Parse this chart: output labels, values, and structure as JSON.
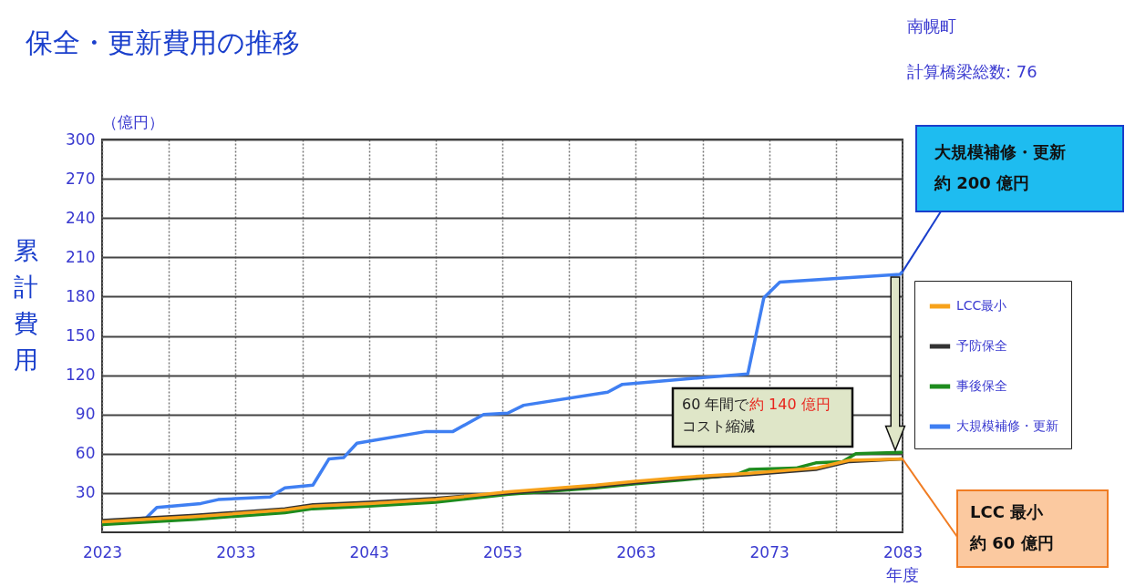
{
  "chart_data": {
    "type": "line",
    "title": "保全・更新費用の推移",
    "xlabel": "年度",
    "ylabel": "累計費用",
    "xlim": [
      2023,
      2083
    ],
    "ylim": [
      0,
      300
    ],
    "xticks": [
      2023,
      {
        "value": 2028,
        "label": null
      },
      2033,
      {
        "value": 2038,
        "label": null
      },
      2043,
      {
        "value": 2048,
        "label": null
      },
      2053,
      {
        "value": 2058,
        "label": null
      },
      2063,
      {
        "value": 2068,
        "label": null
      },
      2073,
      {
        "value": 2078,
        "label": null
      },
      2083
    ],
    "yticks": [
      30,
      60,
      90,
      120,
      150,
      180,
      210,
      240,
      270,
      300
    ],
    "grid": true,
    "legend": "right",
    "marker": "none",
    "line_style": "solid",
    "series": [
      {
        "name": "LCC最小",
        "color": "#f7a21b",
        "x": [
          2023,
          2030,
          2036.7,
          2038.8,
          2043,
          2048,
          2053.5,
          2060,
          2063,
          2066.5,
          2071.5,
          2076.5,
          2079,
          2083
        ],
        "values": [
          8,
          12,
          17,
          20,
          22,
          25,
          31,
          36,
          39,
          42,
          45,
          49,
          55,
          56
        ]
      },
      {
        "name": "予防保全",
        "color": "#333333",
        "x": [
          2023,
          2030,
          2036.7,
          2038.8,
          2043,
          2048,
          2053.5,
          2060,
          2063,
          2066.5,
          2071.5,
          2076.5,
          2079,
          2083
        ],
        "values": [
          9,
          13,
          18,
          21,
          23,
          26,
          30,
          35,
          38,
          41,
          44,
          48,
          54,
          56
        ]
      },
      {
        "name": "事後保全",
        "color": "#1e8c1e",
        "x": [
          2023,
          2030,
          2036.7,
          2038.8,
          2043,
          2048,
          2053.5,
          2060,
          2063,
          2066.5,
          2070.5,
          2071.5,
          2075,
          2076.5,
          2078.5,
          2079.5,
          2083
        ],
        "values": [
          6,
          10,
          15,
          18,
          20,
          23,
          29,
          34,
          37,
          40,
          44,
          48,
          49,
          53,
          54,
          60,
          61
        ]
      },
      {
        "name": "大規模補修・更新",
        "color": "#3f7ff2",
        "x": [
          2023,
          2026.3,
          2027.1,
          2030.4,
          2031.7,
          2035.6,
          2036.7,
          2038.8,
          2040,
          2041.1,
          2042.1,
          2047.3,
          2049.3,
          2051.6,
          2053.4,
          2054.6,
          2060.9,
          2062,
          2071.4,
          2072.6,
          2073.8,
          2082.8,
          2083
        ],
        "values": [
          8,
          11,
          19,
          22,
          25,
          27,
          34,
          36,
          56,
          57,
          68,
          77,
          77,
          90,
          91,
          97,
          107,
          113,
          121,
          179,
          191,
          197,
          199
        ]
      }
    ],
    "annotations": [
      "南幌町",
      "計算橋梁総数: 76",
      "（億円）",
      "大規模補修・更新",
      {
        "text": "約 200 億円",
        "x": 2083,
        "y": 199
      },
      "LCC 最小",
      {
        "text": "約 60 億円",
        "x": 2083,
        "y": 56
      },
      "60 年間で",
      "約 140 億円",
      "コスト縮減"
    ]
  }
}
